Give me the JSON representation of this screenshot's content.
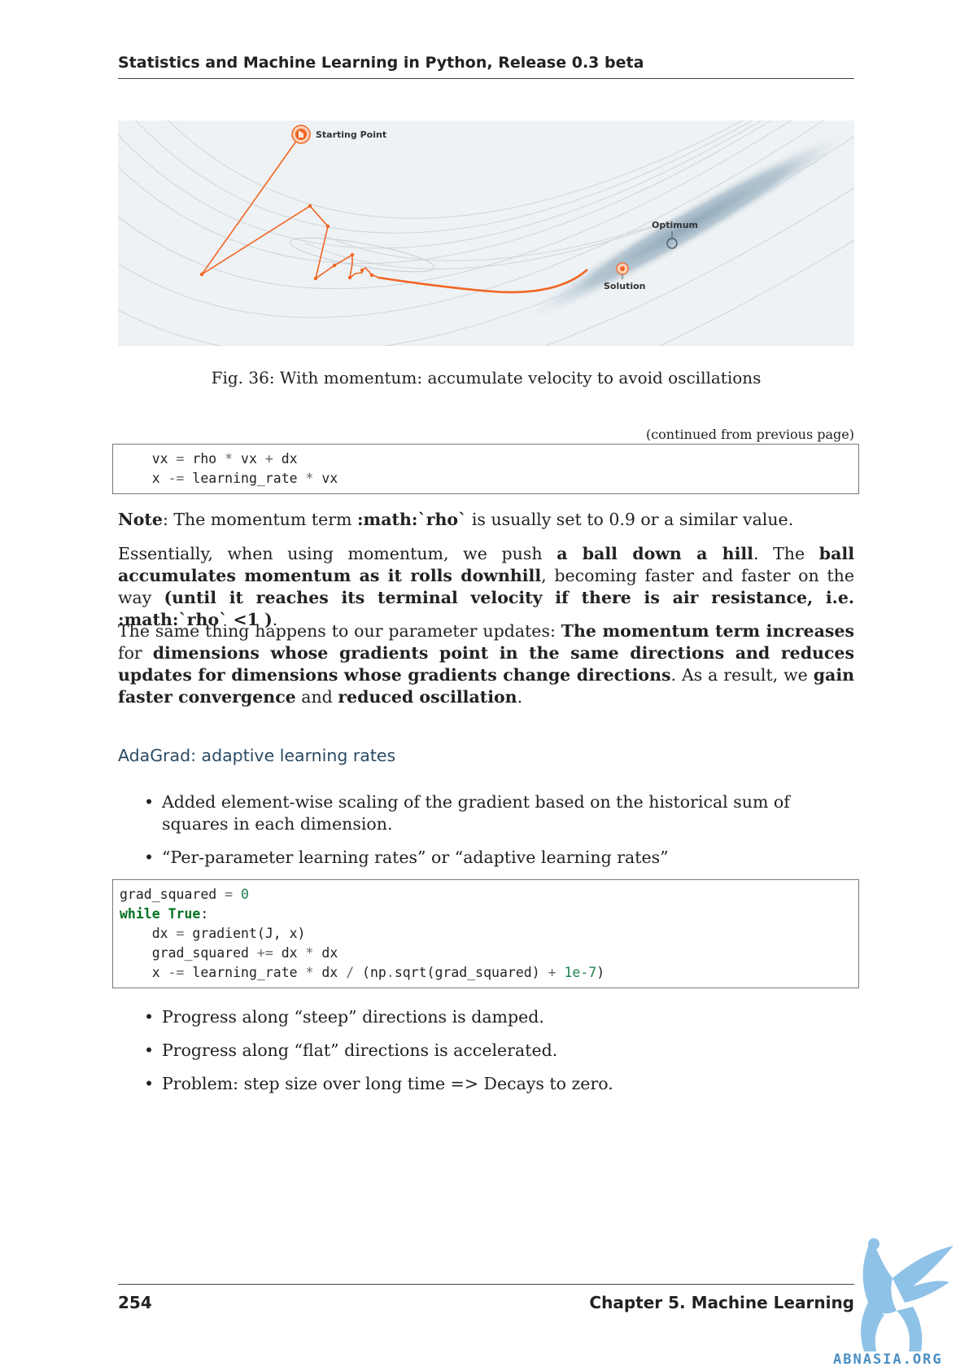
{
  "header": {
    "title": "Statistics and Machine Learning in Python, Release 0.3 beta"
  },
  "figure": {
    "labels": {
      "start": "Starting Point",
      "optimum": "Optimum",
      "solution": "Solution"
    },
    "colors": {
      "path": "#f26522",
      "background": "#e8edf0",
      "contour": "#c9d3da",
      "valley": "#9fb5c4"
    },
    "caption": "Fig. 36: With momentum: accumulate velocity to avoid oscillations"
  },
  "continued": "(continued from previous page)",
  "code1": {
    "l1": {
      "a": "    vx ",
      "b": "=",
      "c": " rho ",
      "d": "*",
      "e": " vx ",
      "f": "+",
      "g": " dx"
    },
    "l2": {
      "a": "    x ",
      "b": "-=",
      "c": " learning_rate ",
      "d": "*",
      "e": " vx"
    }
  },
  "note": {
    "label": "Note",
    "p1": ": The momentum term ",
    "math": ":math:`rho`",
    "p2": " is usually set to 0.9 or a similar value."
  },
  "para1": {
    "a": "Essentially, when using momentum, we push ",
    "b": "a ball down a hill",
    "c": ". The ",
    "d": "ball accumulates momentum as it rolls downhill",
    "e": ", becoming faster and faster on the way ",
    "f": "(until it reaches its terminal velocity if there is air resistance, i.e.  :math:`rho` <1 )",
    "g": "."
  },
  "para2": {
    "a": "The same thing happens to our parameter updates: ",
    "b": "The momentum term increases",
    "c": " for ",
    "d": "dimensions whose gradients point in the same directions and reduces updates for dimensions whose gradients change directions",
    "e": ". As a result, we ",
    "f": "gain faster convergence",
    "g": " and ",
    "h": "reduced oscillation",
    "i": "."
  },
  "section": {
    "title": "AdaGrad: adaptive learning rates"
  },
  "bullets1": [
    "Added element-wise scaling of the gradient based on the historical sum of squares in each dimension.",
    "“Per-parameter learning rates” or “adaptive learning rates”"
  ],
  "code2": {
    "l1": {
      "a": "grad_squared ",
      "b": "=",
      "c": " ",
      "d": "0"
    },
    "l2": {
      "a": "while",
      "b": " ",
      "c": "True",
      "d": ":"
    },
    "l3": {
      "a": "    dx ",
      "b": "=",
      "c": " gradient(J, x)"
    },
    "l4": {
      "a": "    grad_squared ",
      "b": "+=",
      "c": " dx ",
      "d": "*",
      "e": " dx"
    },
    "l5": {
      "a": "    x ",
      "b": "-=",
      "c": " learning_rate ",
      "d": "*",
      "e": " dx ",
      "f": "/",
      "g": " (np",
      "h": ".",
      "i": "sqrt(grad_squared) ",
      "j": "+",
      "k": " ",
      "l": "1e-7",
      "m": ")"
    }
  },
  "bullets2": [
    "Progress along “steep” directions is damped.",
    "Progress along “flat” directions is accelerated.",
    "Problem: step size over long time => Decays to zero."
  ],
  "bullet_symbol": "•",
  "footer": {
    "page": "254",
    "chapter": "Chapter 5.  Machine Learning"
  },
  "watermark": {
    "text": "ABNASIA.ORG",
    "color": "#6aaee0"
  }
}
